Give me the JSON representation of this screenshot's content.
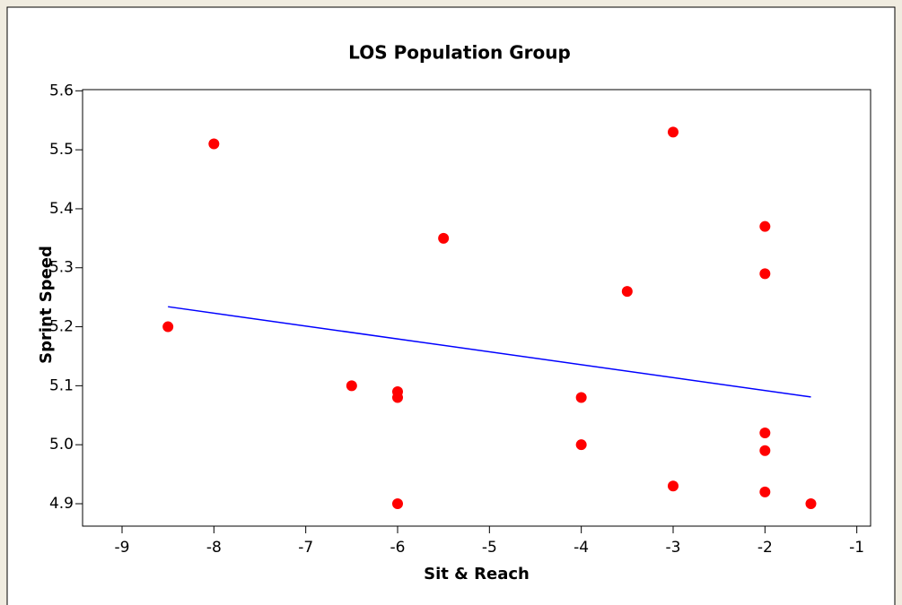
{
  "chart_data": {
    "type": "scatter",
    "title": "LOS Population Group",
    "x_label": "Sit & Reach",
    "y_label": "Sprint Speed",
    "x": [
      -8.5,
      -8,
      -6.5,
      -6,
      -6,
      -6,
      -5.5,
      -4,
      -4,
      -3.5,
      -3,
      -3,
      -2,
      -2,
      -2,
      -2,
      -2,
      -1.5
    ],
    "values": [
      5.2,
      5.51,
      5.1,
      5.09,
      5.08,
      4.9,
      5.35,
      5.08,
      5.0,
      5.26,
      5.53,
      4.93,
      5.37,
      5.29,
      5.02,
      4.99,
      4.92,
      4.9
    ],
    "color": "#ff0000",
    "trend": {
      "x": [
        -8.5,
        -1.5
      ],
      "values": [
        5.234,
        5.081
      ],
      "color": "#0000ff"
    },
    "xlim": [
      -9.43,
      -0.85
    ],
    "xticks": [
      -9,
      -8,
      -7,
      -6,
      -5,
      -4,
      -3,
      -2,
      -1
    ],
    "ylim": [
      4.862,
      5.602
    ],
    "yticks": [
      {
        "value": 4.9,
        "label": "4.9"
      },
      {
        "value": 5.0,
        "label": "5.0"
      },
      {
        "value": 5.1,
        "label": "5.1"
      },
      {
        "value": 5.2,
        "label": "5.2"
      },
      {
        "value": 5.3,
        "label": "5.3"
      },
      {
        "value": 5.4,
        "label": "5.4"
      },
      {
        "value": 5.5,
        "label": "5.5"
      },
      {
        "value": 5.6,
        "label": "5.6"
      }
    ],
    "grid": false
  }
}
